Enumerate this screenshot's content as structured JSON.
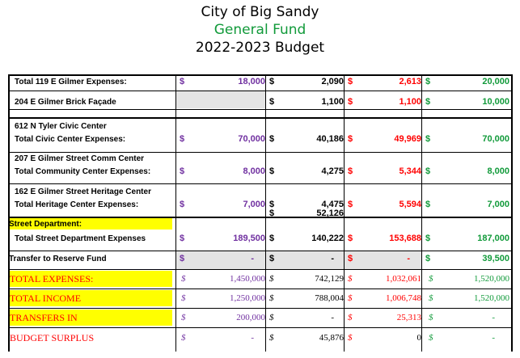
{
  "header": {
    "city": "City of Big Sandy",
    "fund": "General Fund",
    "budget": "2022-2023 Budget"
  },
  "currency_symbol": "$",
  "rows": [
    {
      "label": "Total 119 E Gilmer Expenses:",
      "c1": "18,000",
      "c2": "2,090",
      "c3": "2,613",
      "c4": "20,000"
    },
    {
      "label": "204 E Gilmer Brick Façade",
      "c1": "",
      "c2": "1,100",
      "c3": "1,100",
      "c4": "10,000"
    },
    {
      "sublabel": "612 N Tyler Civic Center",
      "label": "Total Civic Center Expenses:",
      "c1": "70,000",
      "c2": "40,186",
      "c3": "49,969",
      "c4": "70,000"
    },
    {
      "sublabel": "207 E Gilmer Street Comm Center",
      "label": "Total Community Center Expenses:",
      "c1": "8,000",
      "c2": "4,275",
      "c3": "5,344",
      "c4": "8,000"
    },
    {
      "sublabel": "162 E Gilmer Street Heritage Center",
      "label": "Total Heritage Center Expenses:",
      "c1": "7,000",
      "c2": "4,475",
      "c2_overflow": "52,126",
      "c3": "5,594",
      "c4": "7,000"
    },
    {
      "sublabel": "Street Department:",
      "label": "Total Street Department Expenses",
      "c1": "189,500",
      "c2": "140,222",
      "c3": "153,688",
      "c4": "187,000"
    },
    {
      "label": "Transfer to Reserve Fund",
      "c1": "-",
      "c2": "-",
      "c3": "-",
      "c4": "39,500"
    },
    {
      "label": "TOTAL EXPENSES:",
      "c1": "1,450,000",
      "c2": "742,129",
      "c3": "1,032,061",
      "c4": "1,520,000"
    },
    {
      "label": "TOTAL INCOME",
      "c1": "1,250,000",
      "c2": "788,004",
      "c3": "1,006,748",
      "c4": "1,520,000"
    },
    {
      "label": "TRANSFERS IN",
      "c1": "200,000",
      "c2": "-",
      "c3": "25,313",
      "c4": "-"
    },
    {
      "label": "BUDGET SURPLUS",
      "c1": "-",
      "c2": "45,876",
      "c3": "0",
      "c4": "-"
    }
  ],
  "colors": {
    "col1": "#7030a0",
    "col2": "#000000",
    "col3": "#ff0000",
    "col4": "#119a3a",
    "highlight": "#ffff00",
    "shade": "#e4e4e4"
  }
}
